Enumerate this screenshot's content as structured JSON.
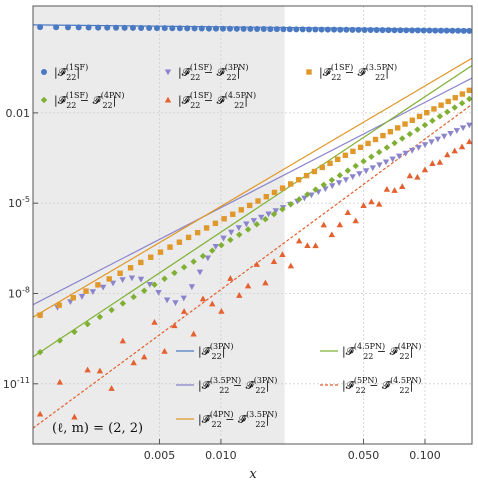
{
  "chart_data": {
    "type": "scatter",
    "title": "",
    "xlabel": "x",
    "ylabel": "",
    "xscale": "log",
    "yscale": "log",
    "xlim": [
      0.0012,
      0.17
    ],
    "ylim_log10": [
      -13.0,
      1.55
    ],
    "x_ticks": [
      {
        "value": 0.005,
        "label": "0.005"
      },
      {
        "value": 0.01,
        "label": "0.010"
      },
      {
        "value": 0.05,
        "label": "0.050"
      },
      {
        "value": 0.1,
        "label": "0.100"
      }
    ],
    "y_ticks": [
      {
        "log10": -2,
        "base": "0.01",
        "exp": ""
      },
      {
        "log10": -5,
        "base": "10",
        "exp": "-5"
      },
      {
        "log10": -8,
        "base": "10",
        "exp": "-8"
      },
      {
        "log10": -11,
        "base": "10",
        "exp": "-11"
      }
    ],
    "shaded_region": {
      "x_from": 0.0012,
      "x_to": 0.0205,
      "color": "#ebebeb"
    },
    "annotation": "(ℓ, m) = (2, 2)",
    "colors": {
      "blue": "#4a79c4",
      "purple": "#8a84cc",
      "orange": "#e0982a",
      "green": "#7fb033",
      "red": "#e4602f"
    },
    "marker_series": [
      {
        "key": "s1",
        "name": "|F̂(1SF)22|",
        "marker": "circle",
        "color": "#4a79c4",
        "x_range": [
          0.0013,
          0.165
        ],
        "count": 62,
        "model": {
          "type": "power",
          "log10_at_ref": 0.85,
          "x_ref": 0.0013,
          "slope": -0.06
        }
      },
      {
        "key": "s2",
        "name": "|F̂(1SF)22 − F̂(3PN)22|",
        "marker": "triangle-down",
        "color": "#8a84cc",
        "x_range": [
          0.0013,
          0.165
        ],
        "count": 56,
        "model": {
          "type": "power_dip",
          "log10_at_ref": -8.72,
          "x_ref": 0.0013,
          "slope": 3.0,
          "dip": {
            "center": 0.0062,
            "depth": 1.6,
            "width": 0.1
          }
        }
      },
      {
        "key": "s3",
        "name": "|F̂(1SF)22 − F̂(3.5PN)22|",
        "marker": "square",
        "color": "#e0982a",
        "x_range": [
          0.0013,
          0.165
        ],
        "count": 50,
        "model": {
          "type": "power",
          "log10_at_ref": -8.72,
          "x_ref": 0.0013,
          "slope": 3.55
        }
      },
      {
        "key": "s4",
        "name": "|F̂(1SF)22 − F̂(4PN)22|",
        "marker": "diamond",
        "color": "#7fb033",
        "x_range": [
          0.0013,
          0.165
        ],
        "count": 48,
        "model": {
          "type": "power",
          "log10_at_ref": -9.95,
          "x_ref": 0.0013,
          "slope": 4.0
        }
      },
      {
        "key": "s5",
        "name": "|F̂(1SF)22 − F̂(4.5PN)22|",
        "marker": "triangle-up",
        "color": "#e4602f",
        "x_range": [
          0.0013,
          0.165
        ],
        "count": 48,
        "model": {
          "type": "scatter_growth",
          "log10_at_ref": -12.0,
          "x_ref": 0.0013,
          "slope": 4.3
        }
      }
    ],
    "line_series": [
      {
        "key": "l1",
        "name": "|F̂(3PN)22|",
        "color": "#4a79c4",
        "dash": "",
        "log10_at_ref": 0.92,
        "x_ref": 0.0013,
        "slope": -0.07
      },
      {
        "key": "l2",
        "name": "|F̂(3.5PN)22 − F̂(3PN)22|",
        "color": "#8a84cc",
        "dash": "",
        "log10_at_ref": -8.25,
        "x_ref": 0.0013,
        "slope": 3.5
      },
      {
        "key": "l3",
        "name": "|F̂(4PN)22 − F̂(3.5PN)22|",
        "color": "#e0982a",
        "dash": "",
        "log10_at_ref": -8.65,
        "x_ref": 0.0013,
        "slope": 4.0
      },
      {
        "key": "l4",
        "name": "|F̂(4.5PN)22 − F̂(4PN)22|",
        "color": "#7fb033",
        "dash": "",
        "log10_at_ref": -9.95,
        "x_ref": 0.0013,
        "slope": 4.5
      },
      {
        "key": "l5",
        "name": "|F̂(5PN)22 − F̂(4.5PN)22|",
        "color": "#e4602f",
        "dash": "3,2",
        "log10_at_ref": -12.3,
        "x_ref": 0.0013,
        "slope": 5.0
      }
    ],
    "legend": {
      "top": [
        {
          "key": "s1",
          "base": "|𝓕̂",
          "sub": "22",
          "sup": "(1SF)",
          "rest": "|"
        },
        {
          "key": "s2",
          "base": "|𝓕̂",
          "sub": "22",
          "sup": "(1SF)",
          "rest": " − 𝓕̂",
          "sub2": "22",
          "sup2": "(3PN)",
          "end": "|"
        },
        {
          "key": "s3",
          "base": "|𝓕̂",
          "sub": "22",
          "sup": "(1SF)",
          "rest": " − 𝓕̂",
          "sub2": "22",
          "sup2": "(3.5PN)",
          "end": "|"
        },
        {
          "key": "s4",
          "base": "|𝓕̂",
          "sub": "22",
          "sup": "(1SF)",
          "rest": " − 𝓕̂",
          "sub2": "22",
          "sup2": "(4PN)",
          "end": "|"
        },
        {
          "key": "s5",
          "base": "|𝓕̂",
          "sub": "22",
          "sup": "(1SF)",
          "rest": " − 𝓕̂",
          "sub2": "22",
          "sup2": "(4.5PN)",
          "end": "|"
        }
      ],
      "bottom": [
        {
          "key": "l1",
          "base": "|𝓕̂",
          "sub": "22",
          "sup": "(3PN)",
          "rest": "|"
        },
        {
          "key": "l4",
          "base": "|𝓕̂",
          "sub": "22",
          "sup": "(4.5PN)",
          "rest": " − 𝓕̂",
          "sub2": "22",
          "sup2": "(4PN)",
          "end": "|"
        },
        {
          "key": "l2",
          "base": "|𝓕̂",
          "sub": "22",
          "sup": "(3.5PN)",
          "rest": " − 𝓕̂",
          "sub2": "22",
          "sup2": "(3PN)",
          "end": "|"
        },
        {
          "key": "l5",
          "base": "|𝓕̂",
          "sub": "22",
          "sup": "(5PN)",
          "rest": " − 𝓕̂",
          "sub2": "22",
          "sup2": "(4.5PN)",
          "end": "|"
        },
        {
          "key": "l3",
          "base": "|𝓕̂",
          "sub": "22",
          "sup": "(4PN)",
          "rest": " − 𝓕̂",
          "sub2": "22",
          "sup2": "(3.5PN)",
          "end": "|"
        }
      ]
    }
  }
}
